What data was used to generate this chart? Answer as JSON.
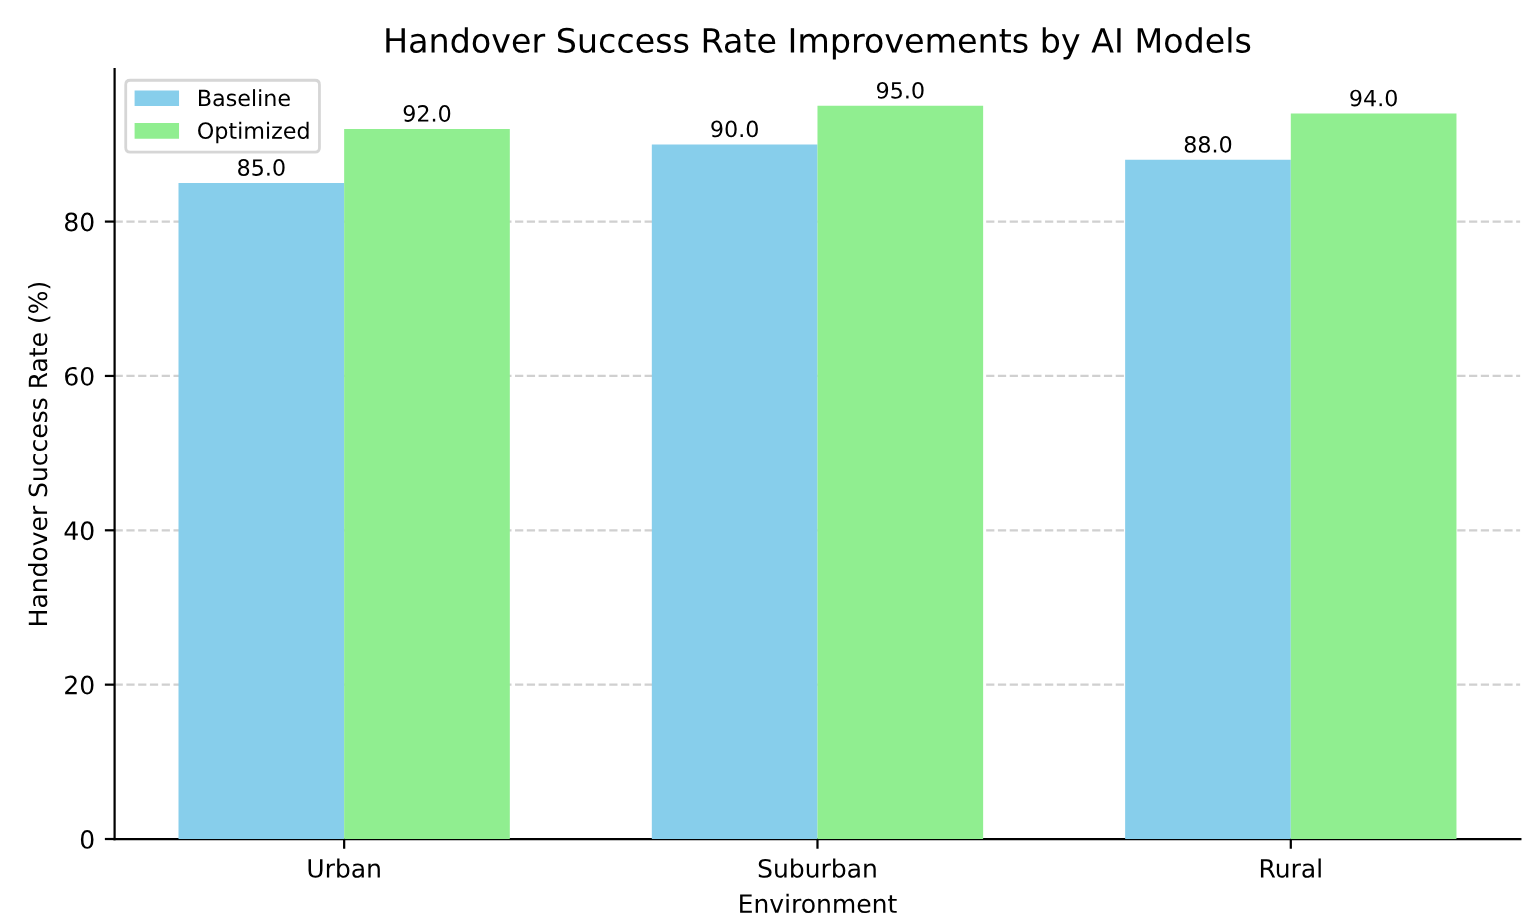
{
  "chart_data": {
    "type": "bar",
    "title": "Handover Success Rate Improvements by AI Models",
    "xlabel": "Environment",
    "ylabel": "Handover Success Rate (%)",
    "categories": [
      "Urban",
      "Suburban",
      "Rural"
    ],
    "series": [
      {
        "name": "Baseline",
        "color": "#87ceeb",
        "values": [
          85.0,
          90.0,
          88.0
        ],
        "value_labels": [
          "85.0",
          "90.0",
          "88.0"
        ]
      },
      {
        "name": "Optimized",
        "color": "#90ee90",
        "values": [
          92.0,
          95.0,
          94.0
        ],
        "value_labels": [
          "92.0",
          "95.0",
          "94.0"
        ]
      }
    ],
    "ylim": [
      0,
      99.75
    ],
    "yticks": [
      0,
      20,
      40,
      60,
      80
    ],
    "grid": "y",
    "legend": "top left"
  }
}
